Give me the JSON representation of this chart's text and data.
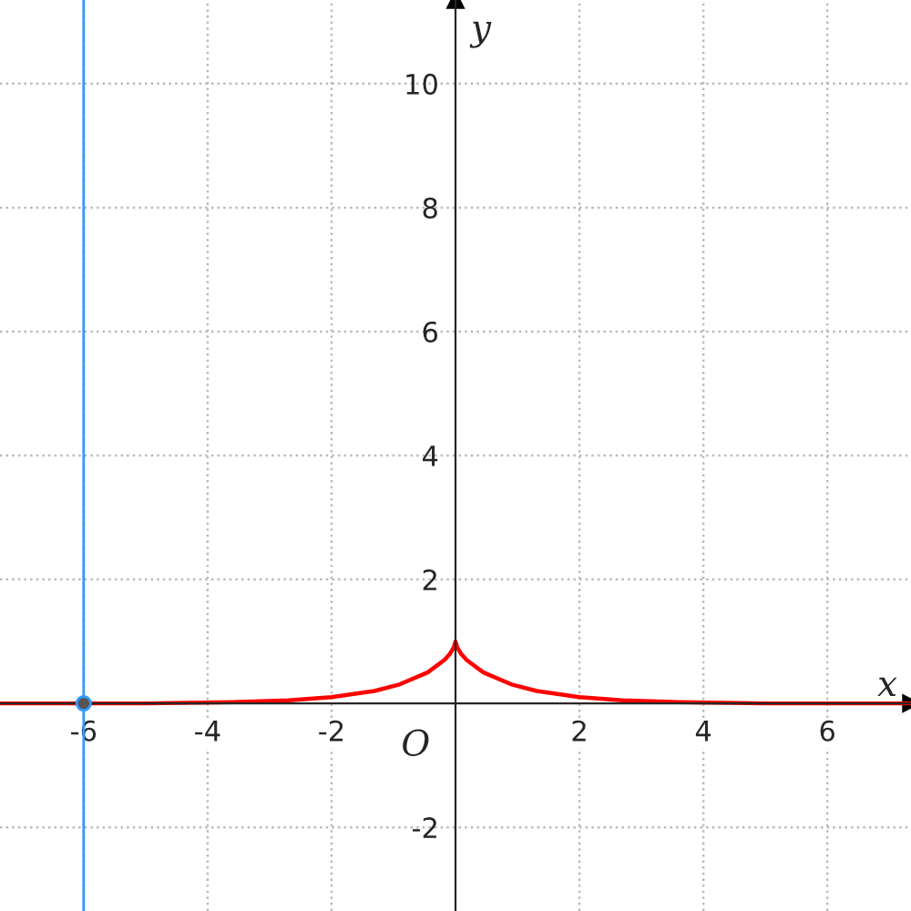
{
  "chart_data": {
    "type": "line",
    "xlabel": "x",
    "ylabel": "y",
    "xlim": [
      -7.35,
      7.35
    ],
    "ylim": [
      -3.35,
      11.35
    ],
    "xticks": [
      -6,
      -4,
      -2,
      2,
      4,
      6
    ],
    "yticks": [
      -2,
      2,
      4,
      6,
      8,
      10
    ],
    "grid": true,
    "legend": false,
    "series": [
      {
        "color": "#ff0000",
        "marker": "none",
        "x": [
          -7.35,
          -5.0,
          -3.6,
          -2.69,
          -2.0,
          -1.31,
          -0.92,
          -0.45,
          -0.18,
          -0.09,
          -0.03,
          0,
          0.03,
          0.09,
          0.18,
          0.45,
          0.92,
          1.31,
          2.0,
          2.69,
          3.6,
          5.0,
          7.35
        ],
        "values": [
          0,
          0,
          0.02,
          0.05,
          0.1,
          0.2,
          0.3,
          0.5,
          0.7,
          0.8,
          0.9,
          1,
          0.9,
          0.8,
          0.7,
          0.5,
          0.3,
          0.2,
          0.1,
          0.05,
          0.02,
          0,
          0
        ]
      },
      {
        "type": "scatter",
        "color": "#555555",
        "marker": "circle",
        "x": [
          -6
        ],
        "values": [
          0
        ]
      }
    ],
    "ref_lines": [
      {
        "axis": "x",
        "value": -6,
        "color": "#3399ff"
      }
    ],
    "annotations": [
      "O"
    ]
  }
}
